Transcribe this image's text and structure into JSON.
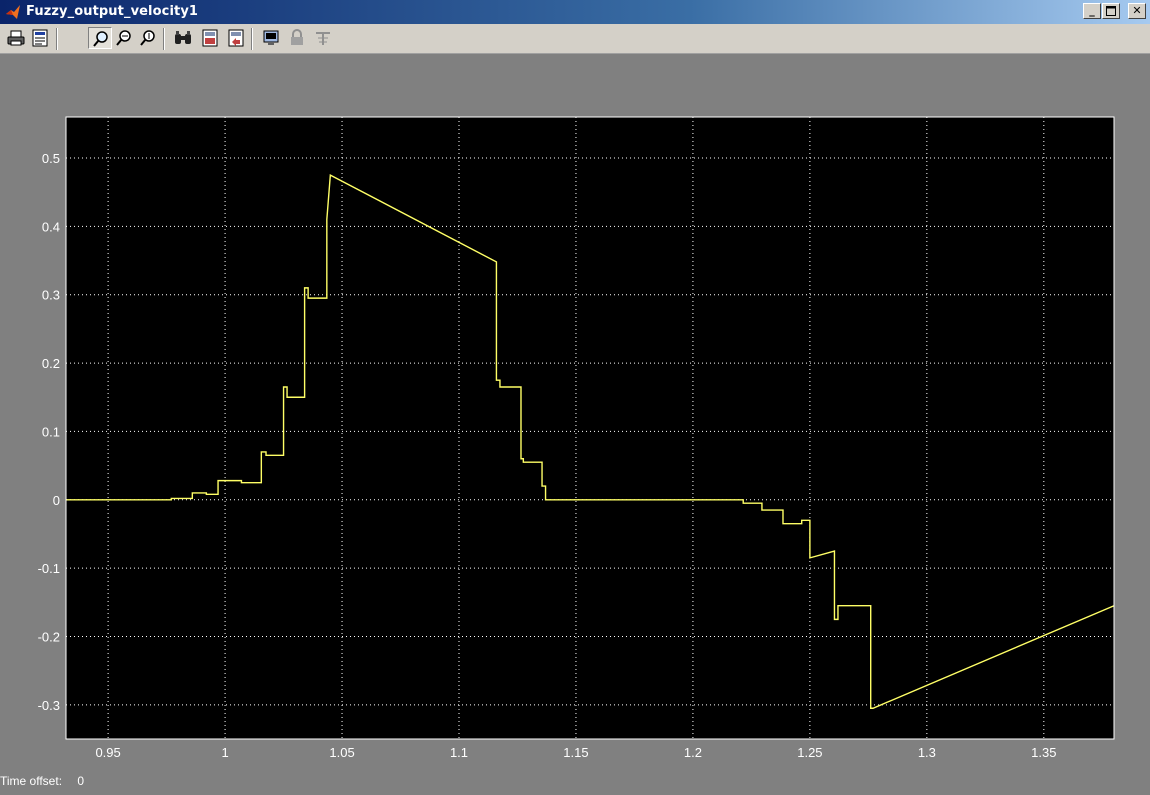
{
  "window": {
    "title": "Fuzzy_output_velocity1",
    "controls": [
      "minimize",
      "maximize",
      "close"
    ]
  },
  "toolbar": {
    "buttons": [
      {
        "icon": "print-icon"
      },
      {
        "icon": "print-preview-icon"
      },
      {
        "icon": "zoom-icon",
        "pressed": true
      },
      {
        "icon": "zoom-x-icon"
      },
      {
        "icon": "zoom-y-icon"
      },
      {
        "icon": "autoscale-icon"
      },
      {
        "icon": "save-axes-settings-icon"
      },
      {
        "icon": "restore-axes-settings-icon"
      },
      {
        "icon": "floating-scope-icon"
      },
      {
        "icon": "lock-axes-icon"
      },
      {
        "icon": "signal-selection-icon"
      }
    ]
  },
  "status": {
    "time_offset_label": "Time offset:",
    "time_offset_value": "0"
  },
  "colors": {
    "plot_bg": "#000000",
    "trace": "#ffff66",
    "axis": "#ffffff",
    "grid": "#ffffff",
    "window_bg": "#808080"
  },
  "chart_data": {
    "type": "line",
    "title": "",
    "xlabel": "",
    "ylabel": "",
    "xlim": [
      0.932,
      1.38
    ],
    "ylim": [
      -0.35,
      0.56
    ],
    "grid": true,
    "xticks": [
      0.95,
      1,
      1.05,
      1.1,
      1.15,
      1.2,
      1.25,
      1.3,
      1.35
    ],
    "xtick_labels": [
      "0.95",
      "1",
      "1.05",
      "1.1",
      "1.15",
      "1.2",
      "1.25",
      "1.3",
      "1.35"
    ],
    "yticks": [
      -0.3,
      -0.2,
      -0.1,
      0,
      0.1,
      0.2,
      0.3,
      0.4,
      0.5
    ],
    "ytick_labels": [
      "-0.3",
      "-0.2",
      "-0.1",
      "0",
      "0.1",
      "0.2",
      "0.3",
      "0.4",
      "0.5"
    ],
    "series": [
      {
        "x": [
          0.932,
          0.977,
          0.977,
          0.986,
          0.986,
          0.992,
          0.992,
          0.997,
          0.997,
          1.007,
          1.007,
          1.0155,
          1.0155,
          1.0175,
          1.0175,
          1.025,
          1.025,
          1.0265,
          1.0265,
          1.034,
          1.034,
          1.0355,
          1.0355,
          1.0435,
          1.0435,
          1.045,
          1.045,
          1.116,
          1.116,
          1.1175,
          1.1175,
          1.1265,
          1.1265,
          1.1275,
          1.1275,
          1.1355,
          1.1355,
          1.137,
          1.137,
          1.2215,
          1.2215,
          1.2295,
          1.2295,
          1.2385,
          1.2385,
          1.2465,
          1.2465,
          1.25,
          1.25,
          1.2605,
          1.2605,
          1.262,
          1.262,
          1.276,
          1.276,
          1.277,
          1.38
        ],
        "y": [
          0,
          0,
          0.002,
          0.002,
          0.01,
          0.01,
          0.008,
          0.008,
          0.028,
          0.028,
          0.025,
          0.025,
          0.07,
          0.07,
          0.065,
          0.065,
          0.165,
          0.165,
          0.15,
          0.15,
          0.31,
          0.31,
          0.295,
          0.295,
          0.41,
          0.475,
          0.475,
          0.348,
          0.175,
          0.175,
          0.165,
          0.165,
          0.06,
          0.06,
          0.055,
          0.055,
          0.02,
          0.02,
          0,
          0,
          -0.005,
          -0.005,
          -0.015,
          -0.015,
          -0.035,
          -0.035,
          -0.03,
          -0.03,
          -0.085,
          -0.075,
          -0.175,
          -0.175,
          -0.155,
          -0.155,
          -0.305,
          -0.305,
          -0.155
        ]
      }
    ]
  }
}
